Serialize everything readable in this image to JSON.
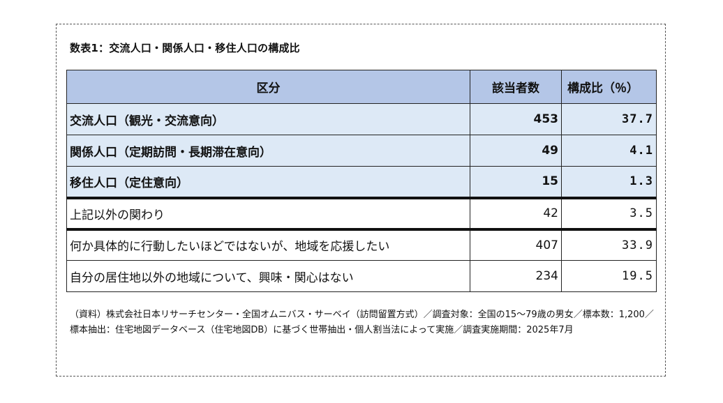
{
  "title": "数表1：交流人口・関係人口・移住人口の構成比",
  "table": {
    "headers": {
      "category": "区分",
      "count": "該当者数",
      "ratio": "構成比（％）"
    },
    "rows": [
      {
        "category": "交流人口（観光・交流意向）",
        "count": "453",
        "ratio": "37.7"
      },
      {
        "category": "関係人口（定期訪問・長期滞在意向）",
        "count": "49",
        "ratio": "4.1"
      },
      {
        "category": "移住人口（定住意向）",
        "count": "15",
        "ratio": "1.3"
      },
      {
        "category": "上記以外の関わり",
        "count": "42",
        "ratio": "3.5"
      },
      {
        "category": "何か具体的に行動したいほどではないが、地域を応援したい",
        "count": "407",
        "ratio": "33.9"
      },
      {
        "category": "自分の居住地以外の地域について、興味・関心はない",
        "count": "234",
        "ratio": "19.5"
      }
    ]
  },
  "note": "（資料）株式会社日本リサーチセンター・全国オムニバス・サーベイ（訪問留置方式）／調査対象：全国の15～79歳の男女／標本数：1,200／標本抽出：住宅地図データベース（住宅地図DB）に基づく世帯抽出・個人割当法によって実施／調査実施期間：2025年7月",
  "colors": {
    "header_bg": "#b4c6e7",
    "highlight_bg": "#dde9f6"
  }
}
